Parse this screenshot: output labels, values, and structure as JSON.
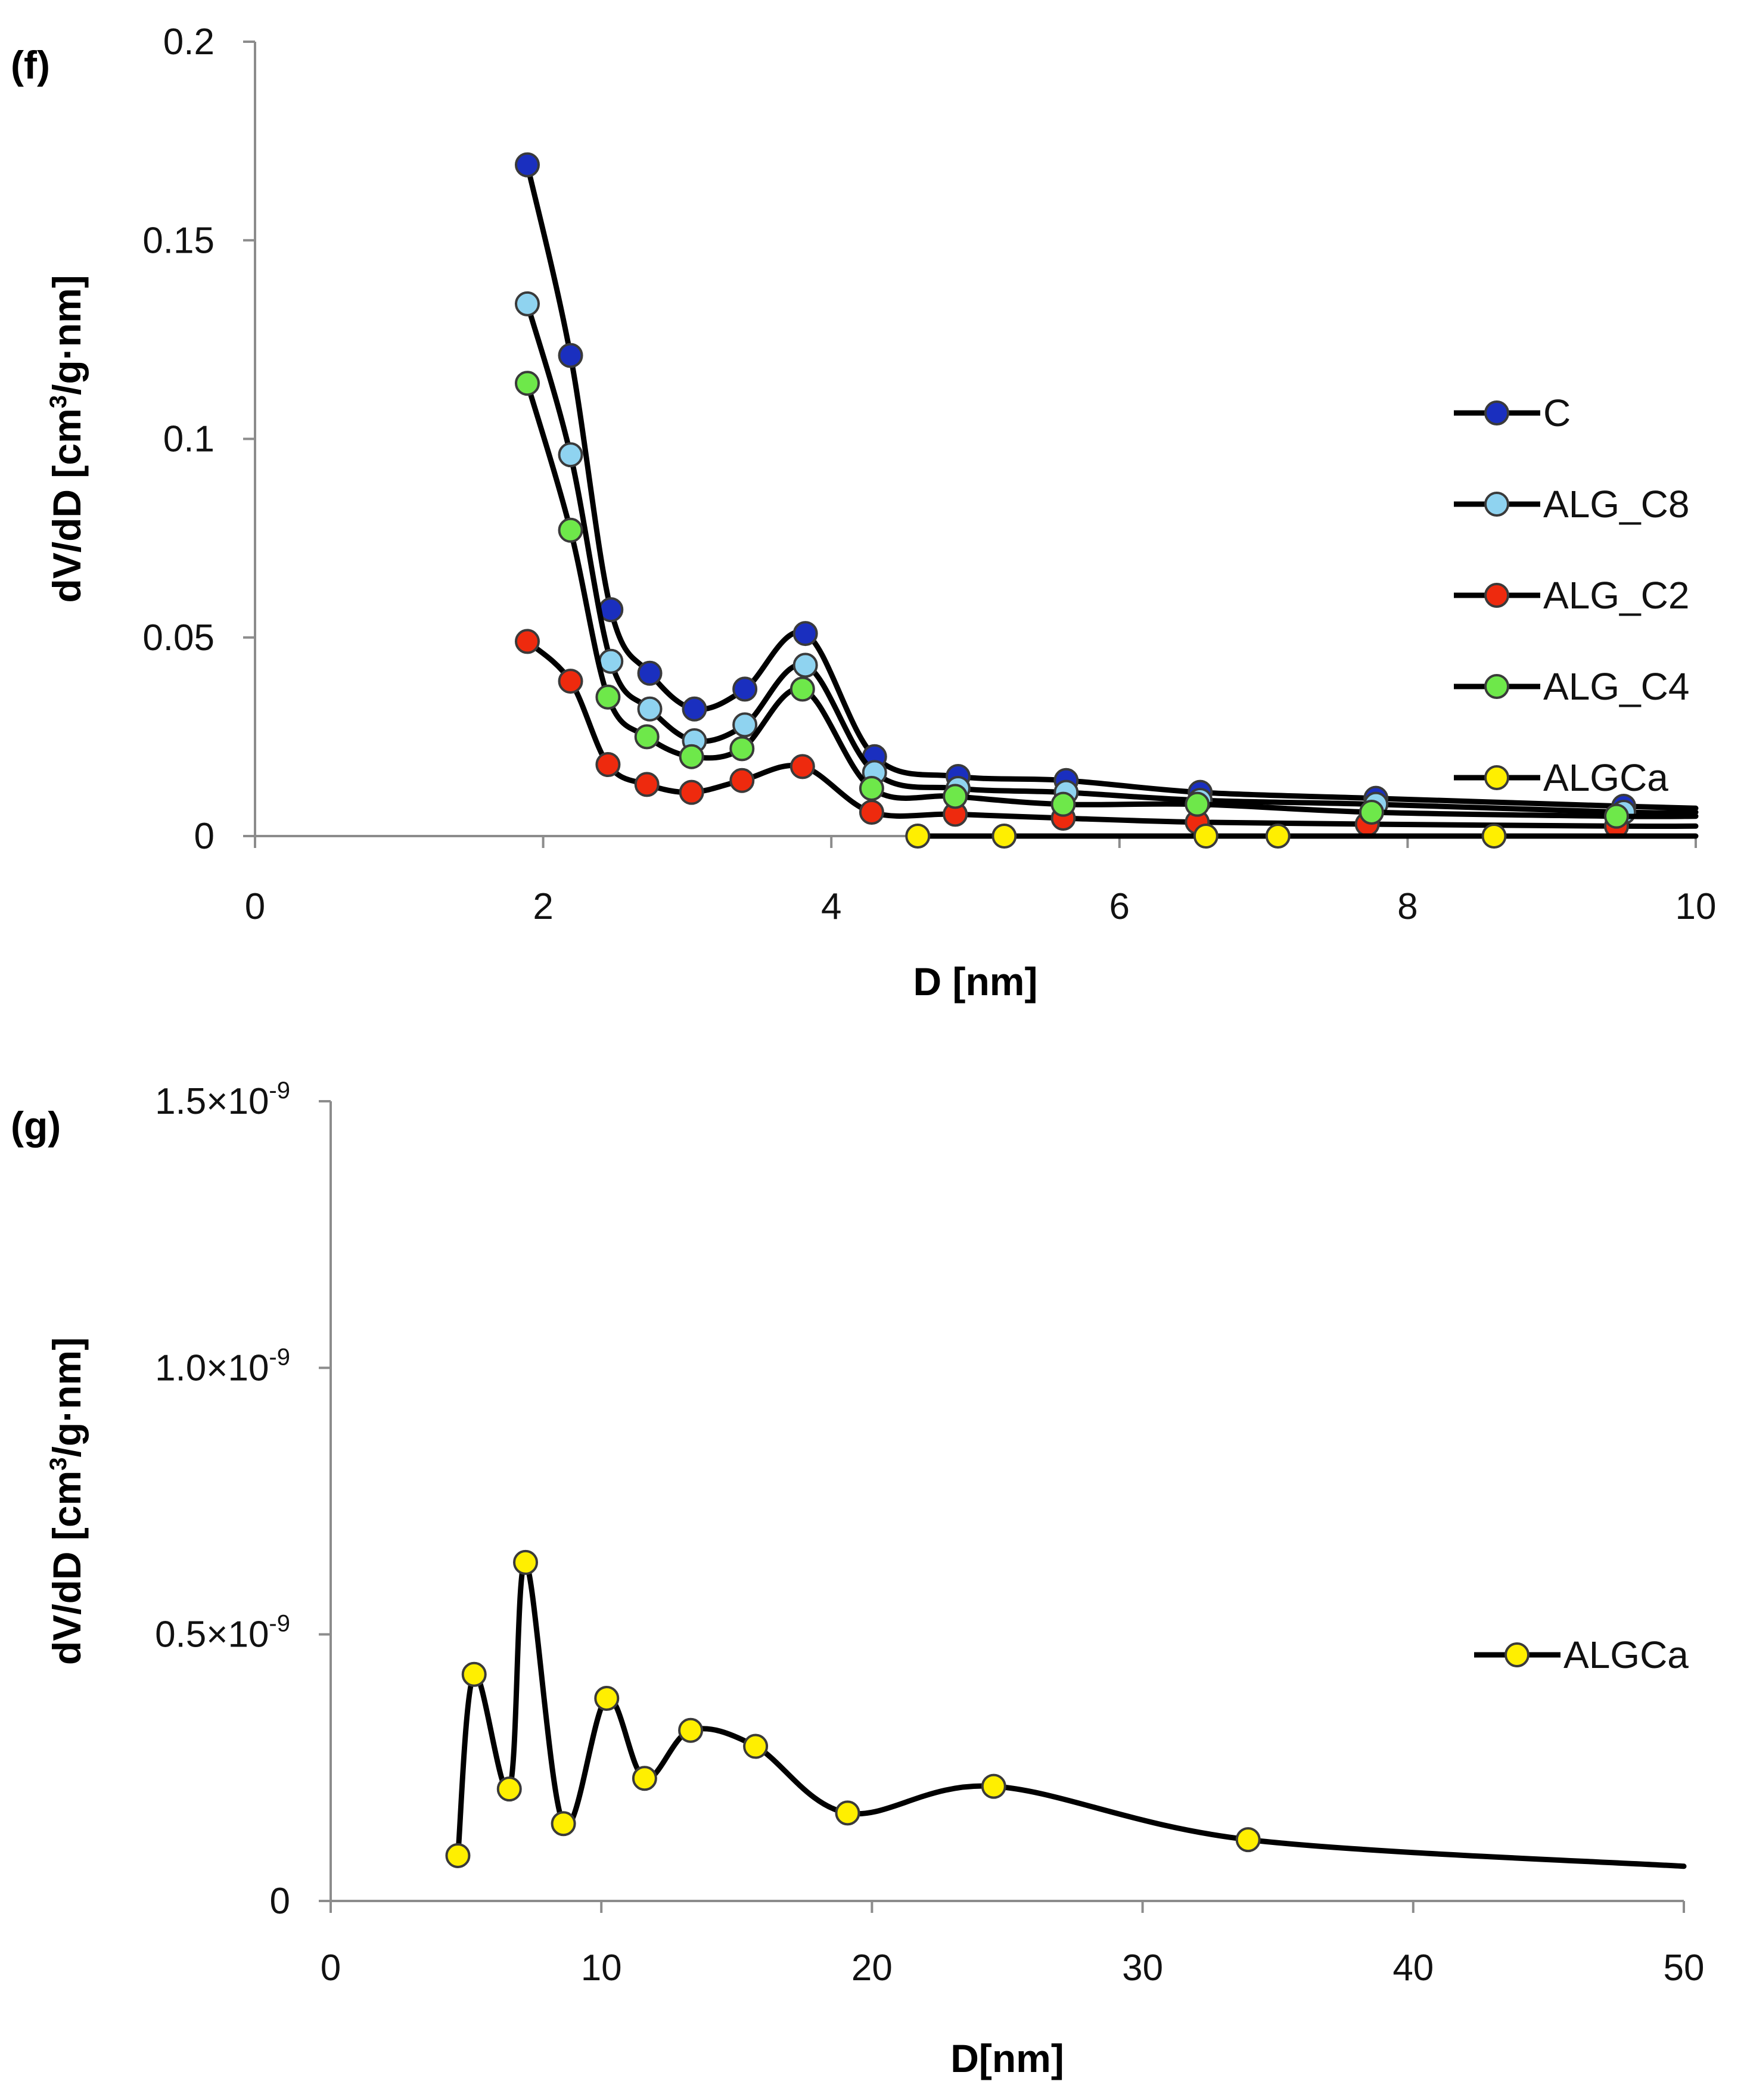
{
  "chart_data": [
    {
      "panel_label": "(f)",
      "type": "line",
      "xlabel": "D [nm]",
      "ylabel": {
        "main": "dV/dD [cm",
        "sup": "3",
        "rest": "/g·nm]"
      },
      "xlim": [
        0,
        10
      ],
      "ylim": [
        0,
        0.2
      ],
      "x_ticks": [
        "0",
        "2",
        "4",
        "6",
        "8",
        "10"
      ],
      "y_ticks": [
        "0",
        "0.05",
        "0.1",
        "0.15",
        "0.2"
      ],
      "legend_position": "right",
      "series": [
        {
          "name": "C",
          "color": "#1a2fbf",
          "x": [
            1.89,
            2.19,
            2.47,
            2.74,
            3.05,
            3.4,
            3.82,
            4.3,
            4.88,
            5.63,
            6.56,
            7.78,
            9.5,
            10.0
          ],
          "y": [
            0.169,
            0.121,
            0.057,
            0.041,
            0.032,
            0.037,
            0.051,
            0.02,
            0.015,
            0.014,
            0.011,
            0.0095,
            0.0075,
            0.007
          ]
        },
        {
          "name": "ALG_C8",
          "color": "#8fd3f0",
          "x": [
            1.89,
            2.19,
            2.47,
            2.74,
            3.05,
            3.4,
            3.82,
            4.3,
            4.88,
            5.63,
            6.56,
            7.78,
            9.5,
            10.0
          ],
          "y": [
            0.134,
            0.096,
            0.044,
            0.032,
            0.024,
            0.028,
            0.043,
            0.016,
            0.012,
            0.011,
            0.009,
            0.008,
            0.006,
            0.006
          ]
        },
        {
          "name": "ALG_C2",
          "color": "#ee2a0e",
          "x": [
            1.89,
            2.19,
            2.45,
            2.72,
            3.03,
            3.38,
            3.8,
            4.28,
            4.86,
            5.61,
            6.54,
            7.72,
            9.45,
            10.0
          ],
          "y": [
            0.049,
            0.039,
            0.018,
            0.013,
            0.011,
            0.014,
            0.0175,
            0.006,
            0.0055,
            0.0045,
            0.0035,
            0.003,
            0.0025,
            0.0025
          ]
        },
        {
          "name": "ALG_C4",
          "color": "#6ee84a",
          "x": [
            1.89,
            2.19,
            2.45,
            2.72,
            3.03,
            3.38,
            3.8,
            4.28,
            4.86,
            5.61,
            6.54,
            7.75,
            9.45,
            10.0
          ],
          "y": [
            0.114,
            0.077,
            0.035,
            0.025,
            0.02,
            0.022,
            0.037,
            0.012,
            0.01,
            0.008,
            0.008,
            0.006,
            0.005,
            0.005
          ]
        },
        {
          "name": "ALGCa",
          "color": "#ffef00",
          "x": [
            4.6,
            5.2,
            6.6,
            7.1,
            8.6,
            10.0
          ],
          "y": [
            0,
            0,
            0,
            0,
            0,
            0
          ]
        }
      ]
    },
    {
      "panel_label": "(g)",
      "type": "line",
      "xlabel": "D[nm]",
      "ylabel": {
        "main": "dV/dD [cm",
        "sup": "3",
        "rest": "/g·nm]"
      },
      "xlim": [
        0,
        50
      ],
      "ylim": [
        0,
        1.5e-09
      ],
      "x_ticks": [
        "0",
        "10",
        "20",
        "30",
        "40",
        "50"
      ],
      "y_ticks": [
        {
          "value": 0,
          "mant": "0",
          "exp": ""
        },
        {
          "value": 5e-10,
          "mant": "0.5×10",
          "exp": "-9"
        },
        {
          "value": 1e-09,
          "mant": "1.0×10",
          "exp": "-9"
        },
        {
          "value": 1.5e-09,
          "mant": "1.5×10",
          "exp": "-9"
        }
      ],
      "legend_position": "right",
      "series": [
        {
          "name": "ALGCa",
          "color": "#ffef00",
          "x": [
            4.7,
            5.3,
            6.6,
            7.2,
            8.6,
            10.2,
            11.6,
            13.3,
            15.7,
            19.1,
            24.5,
            33.9,
            50.0
          ],
          "y": [
            8.5e-11,
            4.25e-10,
            2.1e-10,
            6.35e-10,
            1.45e-10,
            3.8e-10,
            2.3e-10,
            3.2e-10,
            2.9e-10,
            1.65e-10,
            2.15e-10,
            1.15e-10,
            6.5e-11
          ]
        }
      ]
    }
  ]
}
